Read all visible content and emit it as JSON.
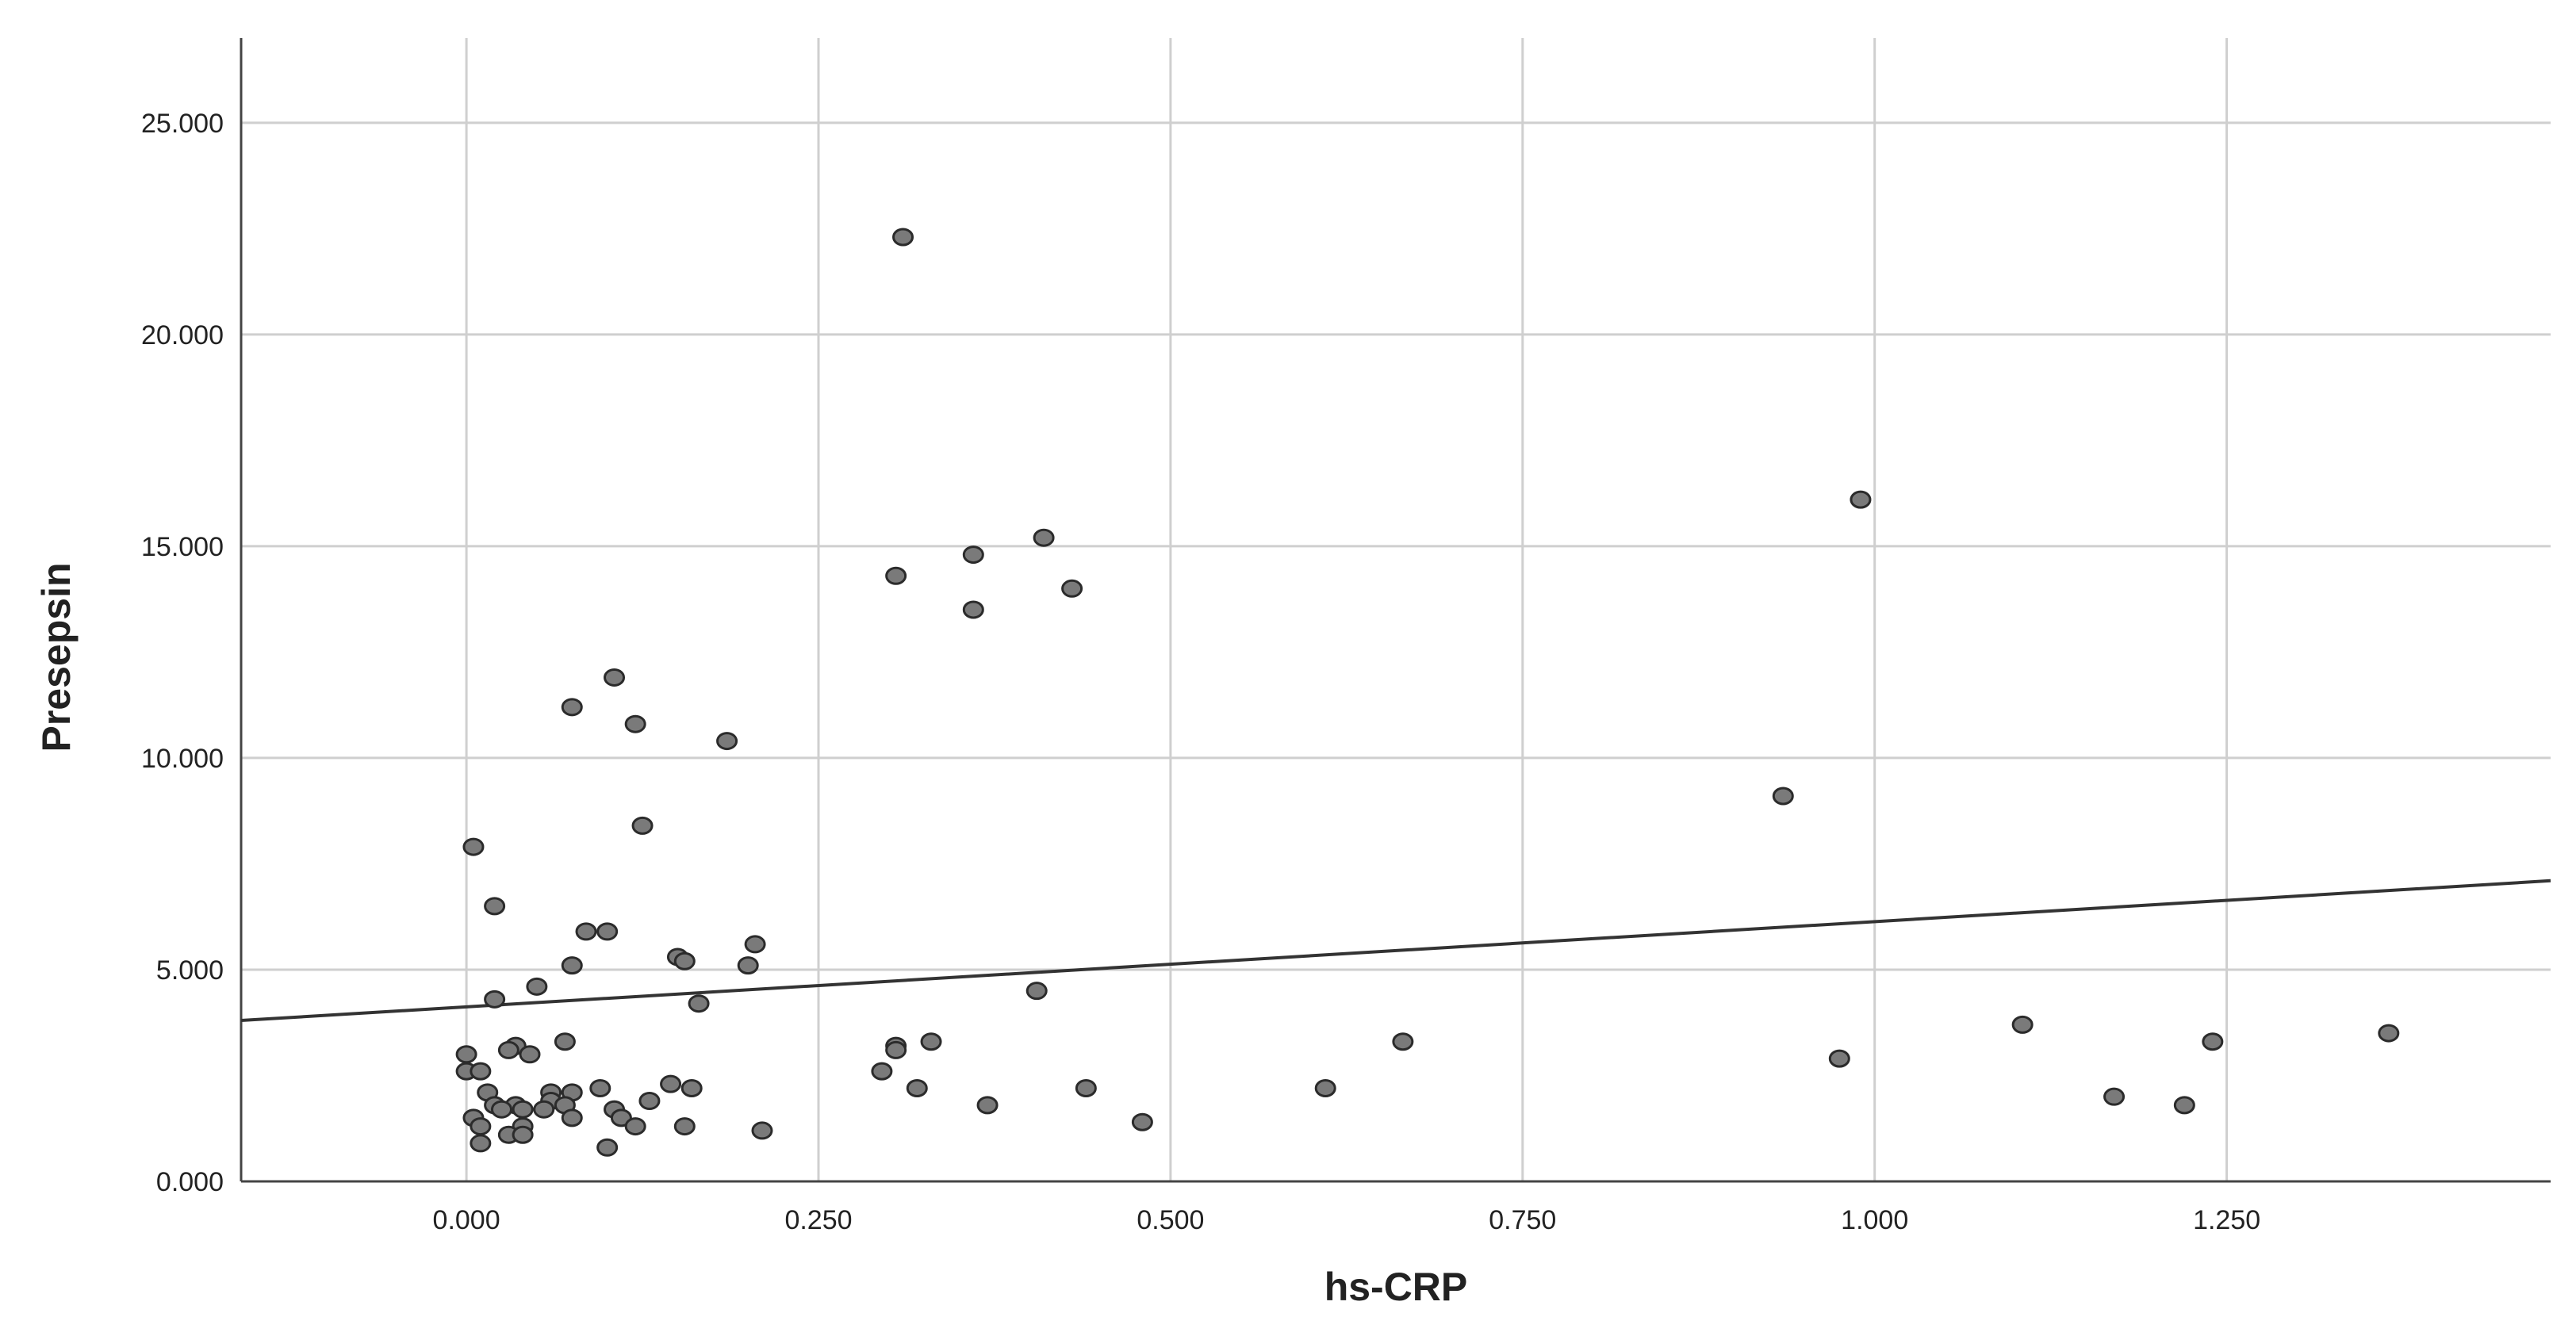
{
  "chart_data": {
    "type": "scatter",
    "title": "",
    "xlabel": "hs-CRP",
    "ylabel": "Presepsin",
    "xlim": [
      -0.16,
      1.48
    ],
    "ylim": [
      0,
      27000
    ],
    "x_ticks": [
      0,
      0.25,
      0.5,
      0.75,
      1.0,
      1.25
    ],
    "x_tick_labels": [
      "0.000",
      "0.250",
      "0.500",
      "0.750",
      "1.000",
      "1.250"
    ],
    "y_ticks": [
      0,
      5000,
      10000,
      15000,
      20000,
      25000
    ],
    "y_tick_labels": [
      "0.000",
      "5.000",
      "10.000",
      "15.000",
      "20.000",
      "25.000"
    ],
    "grid": true,
    "legend": "none",
    "colors": {
      "marker_fill": "#7a7a7a",
      "marker_edge": "#2b2b2b",
      "grid": "#cfcfcf",
      "axis": "#444444",
      "fit_line": "#333333"
    },
    "series": [
      {
        "points": [
          [
            0.31,
            22300
          ],
          [
            0.99,
            16100
          ],
          [
            0.41,
            15200
          ],
          [
            0.36,
            14800
          ],
          [
            0.305,
            14300
          ],
          [
            0.43,
            14000
          ],
          [
            0.36,
            13500
          ],
          [
            0.105,
            11900
          ],
          [
            0.075,
            11200
          ],
          [
            0.12,
            10800
          ],
          [
            0.185,
            10400
          ],
          [
            0.935,
            9100
          ],
          [
            0.125,
            8400
          ],
          [
            0.005,
            7900
          ],
          [
            0.02,
            6500
          ],
          [
            0.085,
            5900
          ],
          [
            0.1,
            5900
          ],
          [
            0.205,
            5600
          ],
          [
            0.15,
            5300
          ],
          [
            0.155,
            5200
          ],
          [
            0.075,
            5100
          ],
          [
            0.2,
            5100
          ],
          [
            0.05,
            4600
          ],
          [
            0.405,
            4500
          ],
          [
            0.02,
            4300
          ],
          [
            0.165,
            4200
          ],
          [
            1.105,
            3700
          ],
          [
            1.365,
            3500
          ],
          [
            0.665,
            3300
          ],
          [
            0.33,
            3300
          ],
          [
            1.24,
            3300
          ],
          [
            0.07,
            3300
          ],
          [
            0.305,
            3200
          ],
          [
            0.305,
            3100
          ],
          [
            0.035,
            3200
          ],
          [
            0.03,
            3100
          ],
          [
            0.045,
            3000
          ],
          [
            0.0,
            3000
          ],
          [
            0.975,
            2900
          ],
          [
            0.0,
            2600
          ],
          [
            0.01,
            2600
          ],
          [
            0.295,
            2600
          ],
          [
            0.095,
            2200
          ],
          [
            0.145,
            2300
          ],
          [
            0.16,
            2200
          ],
          [
            0.32,
            2200
          ],
          [
            0.44,
            2200
          ],
          [
            0.61,
            2200
          ],
          [
            0.015,
            2100
          ],
          [
            0.06,
            2100
          ],
          [
            0.075,
            2100
          ],
          [
            1.17,
            2000
          ],
          [
            0.13,
            1900
          ],
          [
            0.02,
            1800
          ],
          [
            0.035,
            1800
          ],
          [
            0.06,
            1900
          ],
          [
            0.07,
            1800
          ],
          [
            1.22,
            1800
          ],
          [
            0.37,
            1800
          ],
          [
            0.025,
            1700
          ],
          [
            0.055,
            1700
          ],
          [
            0.04,
            1700
          ],
          [
            0.105,
            1700
          ],
          [
            0.005,
            1500
          ],
          [
            0.075,
            1500
          ],
          [
            0.11,
            1500
          ],
          [
            0.48,
            1400
          ],
          [
            0.04,
            1300
          ],
          [
            0.12,
            1300
          ],
          [
            0.155,
            1300
          ],
          [
            0.01,
            1300
          ],
          [
            0.21,
            1200
          ],
          [
            0.03,
            1100
          ],
          [
            0.04,
            1100
          ],
          [
            0.01,
            900
          ],
          [
            0.1,
            800
          ]
        ]
      }
    ],
    "fit_line": {
      "x": [
        -0.16,
        1.48
      ],
      "y": [
        3800,
        7100
      ]
    }
  }
}
